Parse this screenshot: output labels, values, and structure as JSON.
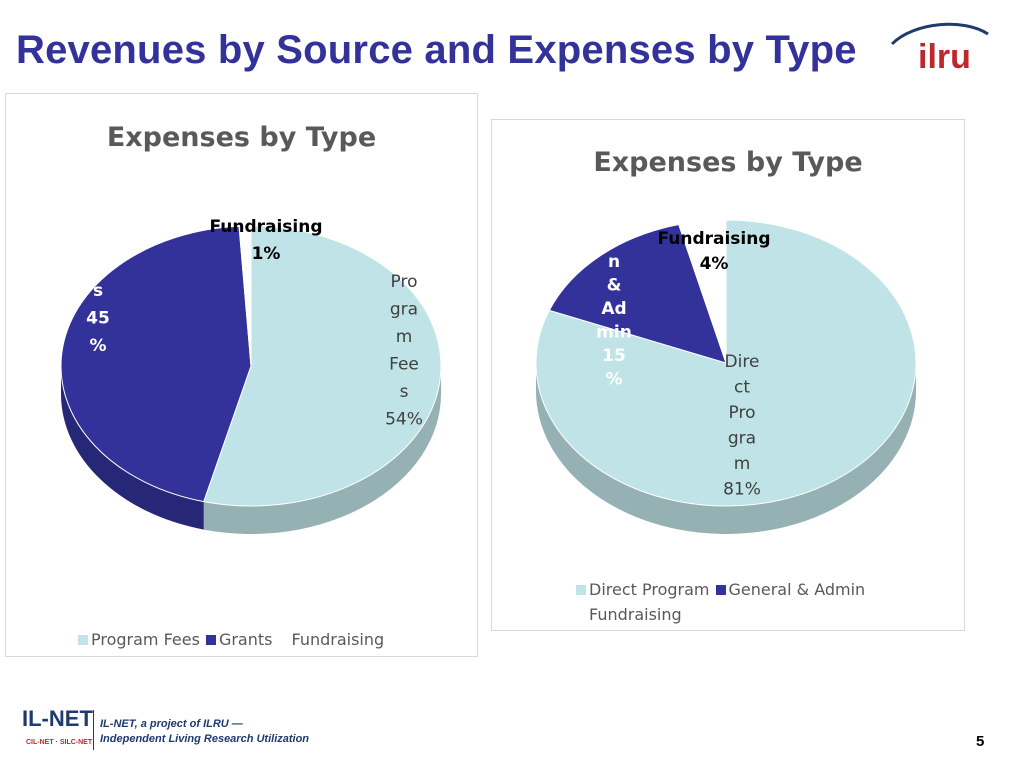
{
  "slide": {
    "title": "Revenues by Source and Expenses by Type",
    "page_number": "5"
  },
  "logo": {
    "text": "ilru"
  },
  "footer": {
    "brand": "IL-NET",
    "brand_sub": "CIL-NET · SILC-NET",
    "line1": "IL-NET, a project of ILRU —",
    "line2": "Independent Living Research Utilization"
  },
  "colors": {
    "title": "#32329a",
    "light_slice": "#bfe3e6",
    "dark_slice": "#32329a",
    "white_slice": "#ffffff"
  },
  "chart_data": [
    {
      "type": "pie",
      "title": "Expenses by Type",
      "legend_position": "bottom",
      "slices": [
        {
          "name": "Program Fees",
          "value": 54,
          "label_lines": [
            "Pro",
            "gra",
            "m",
            "Fee",
            "s",
            "54%"
          ],
          "color": "#bfe3e6"
        },
        {
          "name": "Grants",
          "value": 45,
          "label_lines": [
            "s",
            "45",
            "%"
          ],
          "color": "#32329a"
        },
        {
          "name": "Fundraising",
          "value": 1,
          "label_lines": [
            "Fundraising",
            "1%"
          ],
          "color": "#ffffff"
        }
      ]
    },
    {
      "type": "pie",
      "title": "Expenses by Type",
      "legend_position": "bottom",
      "slices": [
        {
          "name": "Direct Program",
          "value": 81,
          "label_lines": [
            "Dire",
            "ct",
            "Pro",
            "gra",
            "m",
            "81%"
          ],
          "color": "#bfe3e6"
        },
        {
          "name": "General & Admin",
          "value": 15,
          "label_lines": [
            "n",
            "&",
            "Ad",
            "min",
            "15",
            "%"
          ],
          "color": "#32329a"
        },
        {
          "name": "Fundraising",
          "value": 4,
          "label_lines": [
            "Fundraising",
            "4%"
          ],
          "color": "#ffffff"
        }
      ]
    }
  ]
}
